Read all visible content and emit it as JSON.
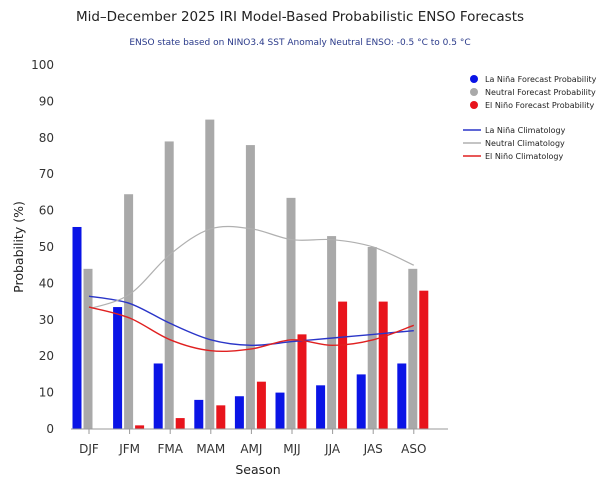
{
  "chart_data": {
    "type": "bar",
    "title": "Mid–December 2025 IRI Model-Based Probabilistic ENSO Forecasts",
    "subtitle": "ENSO state based on NINO3.4 SST Anomaly Neutral ENSO: -0.5 °C to 0.5 °C",
    "xlabel": "Season",
    "ylabel": "Probability (%)",
    "ylim": [
      0,
      100
    ],
    "yticks": [
      "0",
      "10",
      "20",
      "30",
      "40",
      "50",
      "60",
      "70",
      "80",
      "90",
      "100"
    ],
    "categories": [
      "DJF",
      "JFM",
      "FMA",
      "MAM",
      "AMJ",
      "MJJ",
      "JJA",
      "JAS",
      "ASO"
    ],
    "grid": false,
    "legend_position": "right",
    "series": [
      {
        "name": "La Niña Forecast Probability",
        "kind": "bar",
        "color": "#0a14e6",
        "values": [
          55.5,
          33.5,
          18,
          8,
          9,
          10,
          12,
          15,
          18
        ]
      },
      {
        "name": "Neutral Forecast Probability",
        "kind": "bar",
        "color": "#a9a9a9",
        "values": [
          44,
          64.5,
          79,
          85,
          78,
          63.5,
          53,
          50,
          44
        ]
      },
      {
        "name": "El Niño Forecast Probability",
        "kind": "bar",
        "color": "#e8141c",
        "values": [
          0,
          1,
          3,
          6.5,
          13,
          26,
          35,
          35,
          38
        ]
      }
    ],
    "climatology": [
      {
        "name": "La Niña Climatology",
        "kind": "line",
        "color": "#2a35c8",
        "values": [
          36.5,
          34.5,
          29,
          24.5,
          23,
          24,
          25,
          26,
          27
        ]
      },
      {
        "name": "Neutral Climatology",
        "kind": "line",
        "color": "#b0b0b0",
        "values": [
          33,
          37,
          48,
          55,
          55,
          52,
          52,
          50,
          45
        ]
      },
      {
        "name": "El Niño Climatology",
        "kind": "line",
        "color": "#e02020",
        "values": [
          33.5,
          30.5,
          24.5,
          21.5,
          22,
          24.5,
          23,
          24.5,
          28.5
        ]
      }
    ]
  }
}
